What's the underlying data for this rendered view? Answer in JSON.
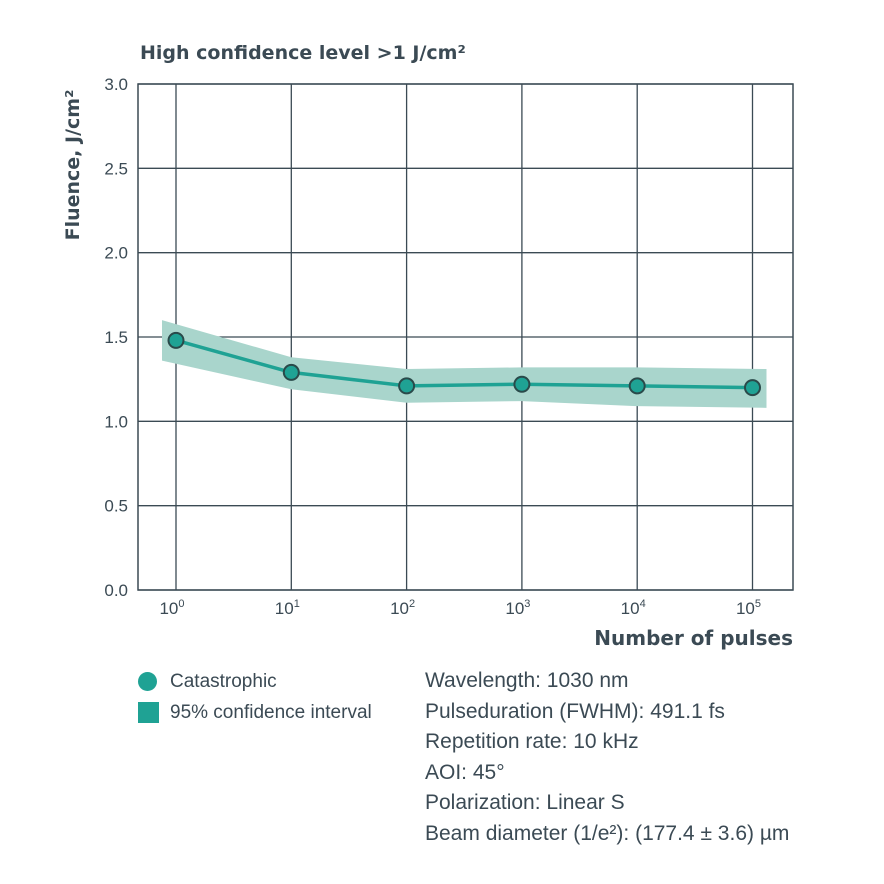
{
  "colors": {
    "text": "#3b4a54",
    "line": "#1fa294",
    "band": "#a9d5cc",
    "marker_fill": "#1fa294",
    "marker_stroke": "#2a4a4a"
  },
  "chart_data": {
    "type": "line",
    "title": "High confidence level >1 J/cm²",
    "xlabel": "Number of pulses",
    "ylabel": "Fluence, J/cm²",
    "x_scale": "log",
    "x_tick_labels": [
      {
        "base": "10",
        "exp": "0"
      },
      {
        "base": "10",
        "exp": "1"
      },
      {
        "base": "10",
        "exp": "2"
      },
      {
        "base": "10",
        "exp": "3"
      },
      {
        "base": "10",
        "exp": "4"
      },
      {
        "base": "10",
        "exp": "5"
      }
    ],
    "y_ticks": [
      "0.0",
      "0.5",
      "1.0",
      "1.5",
      "2.0",
      "2.5",
      "3.0"
    ],
    "ylim": [
      0,
      3
    ],
    "grid": true,
    "series": [
      {
        "name": "Catastrophic",
        "x": [
          1,
          10,
          100,
          1000,
          10000,
          100000
        ],
        "y": [
          1.48,
          1.29,
          1.21,
          1.22,
          1.21,
          1.2
        ]
      }
    ],
    "confidence_band": {
      "name": "95% confidence interval",
      "x": [
        1,
        10,
        100,
        1000,
        10000,
        100000
      ],
      "upper": [
        1.6,
        1.38,
        1.31,
        1.32,
        1.32,
        1.31
      ],
      "lower": [
        1.36,
        1.19,
        1.11,
        1.12,
        1.09,
        1.08
      ]
    }
  },
  "legend": {
    "items": [
      {
        "label": "Catastrophic"
      },
      {
        "label": "95% confidence interval"
      }
    ]
  },
  "parameters": [
    "Wavelength: 1030 nm",
    "Pulseduration (FWHM): 491.1 fs",
    "Repetition rate: 10 kHz",
    "AOI: 45°",
    "Polarization: Linear S",
    "Beam diameter (1/e²): (177.4 ± 3.6) µm"
  ]
}
